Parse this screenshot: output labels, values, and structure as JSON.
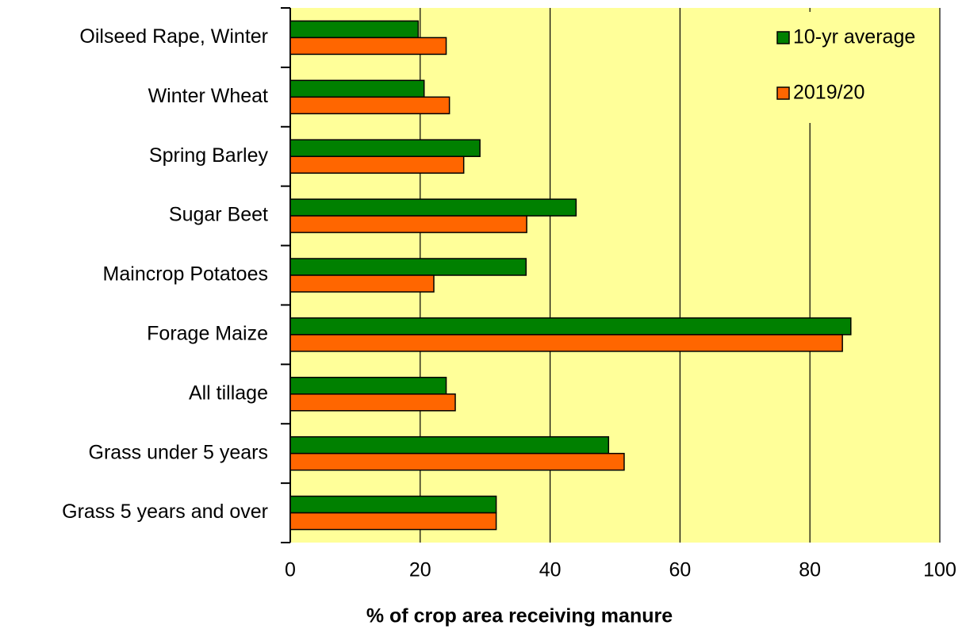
{
  "chart_data": {
    "type": "hbar",
    "x_label": "% of crop area receiving manure",
    "categories": [
      "Oilseed Rape, Winter",
      "Winter Wheat",
      "Spring Barley",
      "Sugar Beet",
      "Maincrop Potatoes",
      "Forage Maize",
      "All tillage",
      "Grass under 5 years",
      "Grass 5 years and over"
    ],
    "series": [
      {
        "name": "10-yr average",
        "color": "#008000",
        "values": [
          19.7,
          20.6,
          29.2,
          44.0,
          36.3,
          86.3,
          24.0,
          49.0,
          31.7
        ]
      },
      {
        "name": "2019/20",
        "color": "#ff6600",
        "values": [
          24.0,
          24.5,
          26.7,
          36.4,
          22.1,
          85.0,
          25.4,
          51.4,
          31.7
        ]
      }
    ],
    "xlim": [
      0,
      100
    ],
    "xticks": [
      0,
      20,
      40,
      60,
      80,
      100
    ],
    "grid": true,
    "plot_background": "#ffff99",
    "legend": "upper right"
  }
}
